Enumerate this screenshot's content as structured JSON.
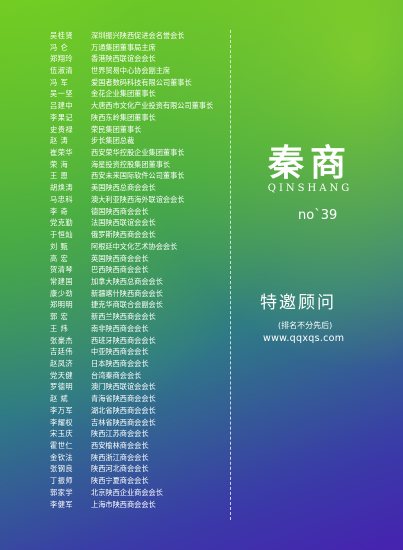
{
  "logo": {
    "cn": "秦商",
    "en": "QINSHANG"
  },
  "issue": "no`39",
  "section": {
    "title": "特邀顾问",
    "note": "(排名不分先后)",
    "website": "www.qqxqs.com"
  },
  "advisors": [
    {
      "name": "吴桂贤",
      "org": "深圳振兴陕西促进会名誉会长"
    },
    {
      "name": "冯 仑",
      "org": "万通集团董事局主席"
    },
    {
      "name": "郑翔玲",
      "org": "香港陕西联谊会会长"
    },
    {
      "name": "伍淑清",
      "org": "世界贸易中心协会副主席"
    },
    {
      "name": "冯 军",
      "org": "爱国者数码科技有限公司董事长"
    },
    {
      "name": "吴一坚",
      "org": "金花企业集团董事长"
    },
    {
      "name": "吕建中",
      "org": "大唐西市文化产业投资有限公司董事长"
    },
    {
      "name": "李果记",
      "org": "陕西东岭集团董事长"
    },
    {
      "name": "史贵禄",
      "org": "荣民集团董事长"
    },
    {
      "name": "赵 涛",
      "org": "步长集团总裁"
    },
    {
      "name": "崔荣华",
      "org": "西安荣华控股企业集团董事长"
    },
    {
      "name": "荣 海",
      "org": "海星投资控股集团董事长"
    },
    {
      "name": "王 恩",
      "org": "西安未来国际软件公司董事长"
    },
    {
      "name": "胡焕涛",
      "org": "美国陕西总商会会长"
    },
    {
      "name": "马忠科",
      "org": "澳大利亚陕西海外联谊会会长"
    },
    {
      "name": "李 奇",
      "org": "德国陕西商会会长"
    },
    {
      "name": "党克勤",
      "org": "法国陕西联谊会会长"
    },
    {
      "name": "于恒灿",
      "org": "俄罗斯陕西商会会长"
    },
    {
      "name": "刘 甄",
      "org": "阿根廷中文化艺术协会会长"
    },
    {
      "name": "高 宏",
      "org": "英国陕西商会会长"
    },
    {
      "name": "贺清琴",
      "org": "巴西陕西商会会长"
    },
    {
      "name": "常建国",
      "org": "加拿大陕西总商会会长"
    },
    {
      "name": "康少劲",
      "org": "新疆喀什陕西商会会长"
    },
    {
      "name": "郑明明",
      "org": "捷克华商联合会副会长"
    },
    {
      "name": "郭 宏",
      "org": "新西兰陕西商会会长"
    },
    {
      "name": "王 炜",
      "org": "南非陕西商会会长"
    },
    {
      "name": "张豪杰",
      "org": "西班牙陕西商会会长"
    },
    {
      "name": "吉廷伟",
      "org": "中亚陕西商会会长"
    },
    {
      "name": "赵凤济",
      "org": "日本陕西商会会长"
    },
    {
      "name": "党天健",
      "org": "台湾秦商会会长"
    },
    {
      "name": "罗德明",
      "org": "澳门陕西联谊会会长"
    },
    {
      "name": "赵 斌",
      "org": "青海省陕西商会会长"
    },
    {
      "name": "李万军",
      "org": "湖北省陕西商会会长"
    },
    {
      "name": "李耀权",
      "org": "吉林省陕西商会会长"
    },
    {
      "name": "宋玉庆",
      "org": "陕西江苏商会会长"
    },
    {
      "name": "霍世仁",
      "org": "西安榆林商会会长"
    },
    {
      "name": "金钦法",
      "org": "陕西浙江商会会长"
    },
    {
      "name": "张钢良",
      "org": "陕西河北商会会长"
    },
    {
      "name": "丁振师",
      "org": "陕西宁夏商会会长"
    },
    {
      "name": "郭家学",
      "org": "北京陕西企业商会会长"
    },
    {
      "name": "李健军",
      "org": "上海市陕西商会会长"
    }
  ]
}
